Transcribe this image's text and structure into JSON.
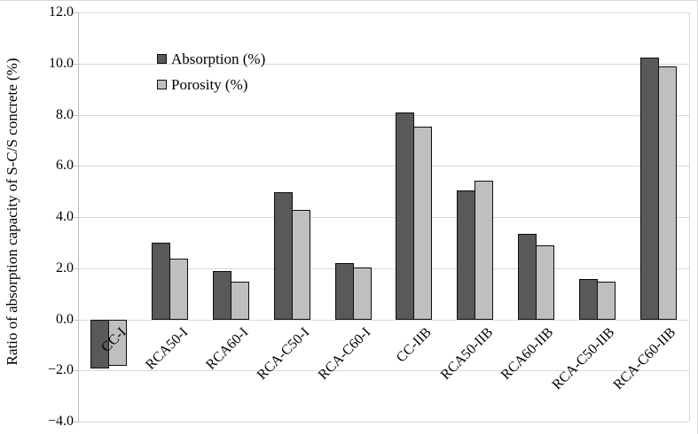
{
  "chart_data": {
    "type": "bar",
    "title": "",
    "xlabel": "",
    "ylabel": "Ratio of absorption capacity of S-C/S concrete (%)",
    "ylim": [
      -4.0,
      12.0
    ],
    "ytick_step": 2.0,
    "ytick_labels": [
      "12.0",
      "10.0",
      "8.0",
      "6.0",
      "4.0",
      "2.0",
      "0.0",
      "−2.0",
      "−4.0"
    ],
    "grid": true,
    "legend_position": "inside-top-left",
    "categories": [
      "CC-I",
      "RCA50-I",
      "RCA60-I",
      "RCA-C50-I",
      "RCA-C60-I",
      "CC-IIB",
      "RCA50-IIB",
      "RCA60-IIB",
      "RCA-C50-IIB",
      "RCA-C60-IIB"
    ],
    "series": [
      {
        "name": "Absorption (%)",
        "color": "#595959",
        "values": [
          -1.9,
          3.0,
          1.9,
          5.0,
          2.2,
          8.1,
          5.05,
          3.35,
          1.6,
          10.25
        ]
      },
      {
        "name": "Porosity (%)",
        "color": "#bfbfbf",
        "values": [
          -1.8,
          2.4,
          1.5,
          4.3,
          2.05,
          7.55,
          5.45,
          2.9,
          1.5,
          9.9
        ]
      }
    ],
    "colors": {
      "gridline": "#d9d9d9",
      "axis_line": "#bfbfbf",
      "bar_border": "#0d0d0d",
      "text": "#000000",
      "background": "#ffffff",
      "chart_border": "#d9d9d9"
    }
  }
}
